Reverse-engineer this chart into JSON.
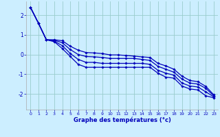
{
  "xlabel": "Graphe des températures (°c)",
  "xlim": [
    -0.5,
    23.5
  ],
  "ylim": [
    -2.8,
    2.7
  ],
  "yticks": [
    -2,
    -1,
    0,
    1,
    2
  ],
  "xticks": [
    0,
    1,
    2,
    3,
    4,
    5,
    6,
    7,
    8,
    9,
    10,
    11,
    12,
    13,
    14,
    15,
    16,
    17,
    18,
    19,
    20,
    21,
    22,
    23
  ],
  "background_color": "#cceeff",
  "line_color": "#0000bb",
  "grid_color": "#99cccc",
  "series": [
    [
      2.4,
      1.6,
      0.75,
      0.65,
      0.3,
      -0.1,
      -0.5,
      -0.65,
      -0.65,
      -0.65,
      -0.65,
      -0.65,
      -0.65,
      -0.65,
      -0.65,
      -0.65,
      -0.95,
      -1.15,
      -1.2,
      -1.6,
      -1.75,
      -1.8,
      -2.1,
      -2.2
    ],
    [
      2.4,
      1.6,
      0.75,
      0.68,
      0.45,
      0.05,
      -0.25,
      -0.4,
      -0.4,
      -0.45,
      -0.45,
      -0.45,
      -0.45,
      -0.45,
      -0.45,
      -0.5,
      -0.8,
      -0.95,
      -1.05,
      -1.45,
      -1.6,
      -1.65,
      -1.9,
      -2.15
    ],
    [
      2.4,
      1.6,
      0.75,
      0.72,
      0.6,
      0.25,
      0.0,
      -0.1,
      -0.12,
      -0.15,
      -0.2,
      -0.2,
      -0.2,
      -0.2,
      -0.25,
      -0.3,
      -0.6,
      -0.75,
      -0.9,
      -1.25,
      -1.45,
      -1.5,
      -1.72,
      -2.1
    ],
    [
      2.4,
      1.6,
      0.75,
      0.75,
      0.7,
      0.42,
      0.22,
      0.1,
      0.08,
      0.05,
      -0.02,
      -0.02,
      -0.05,
      -0.08,
      -0.12,
      -0.15,
      -0.45,
      -0.58,
      -0.75,
      -1.1,
      -1.32,
      -1.38,
      -1.62,
      -2.05
    ]
  ]
}
